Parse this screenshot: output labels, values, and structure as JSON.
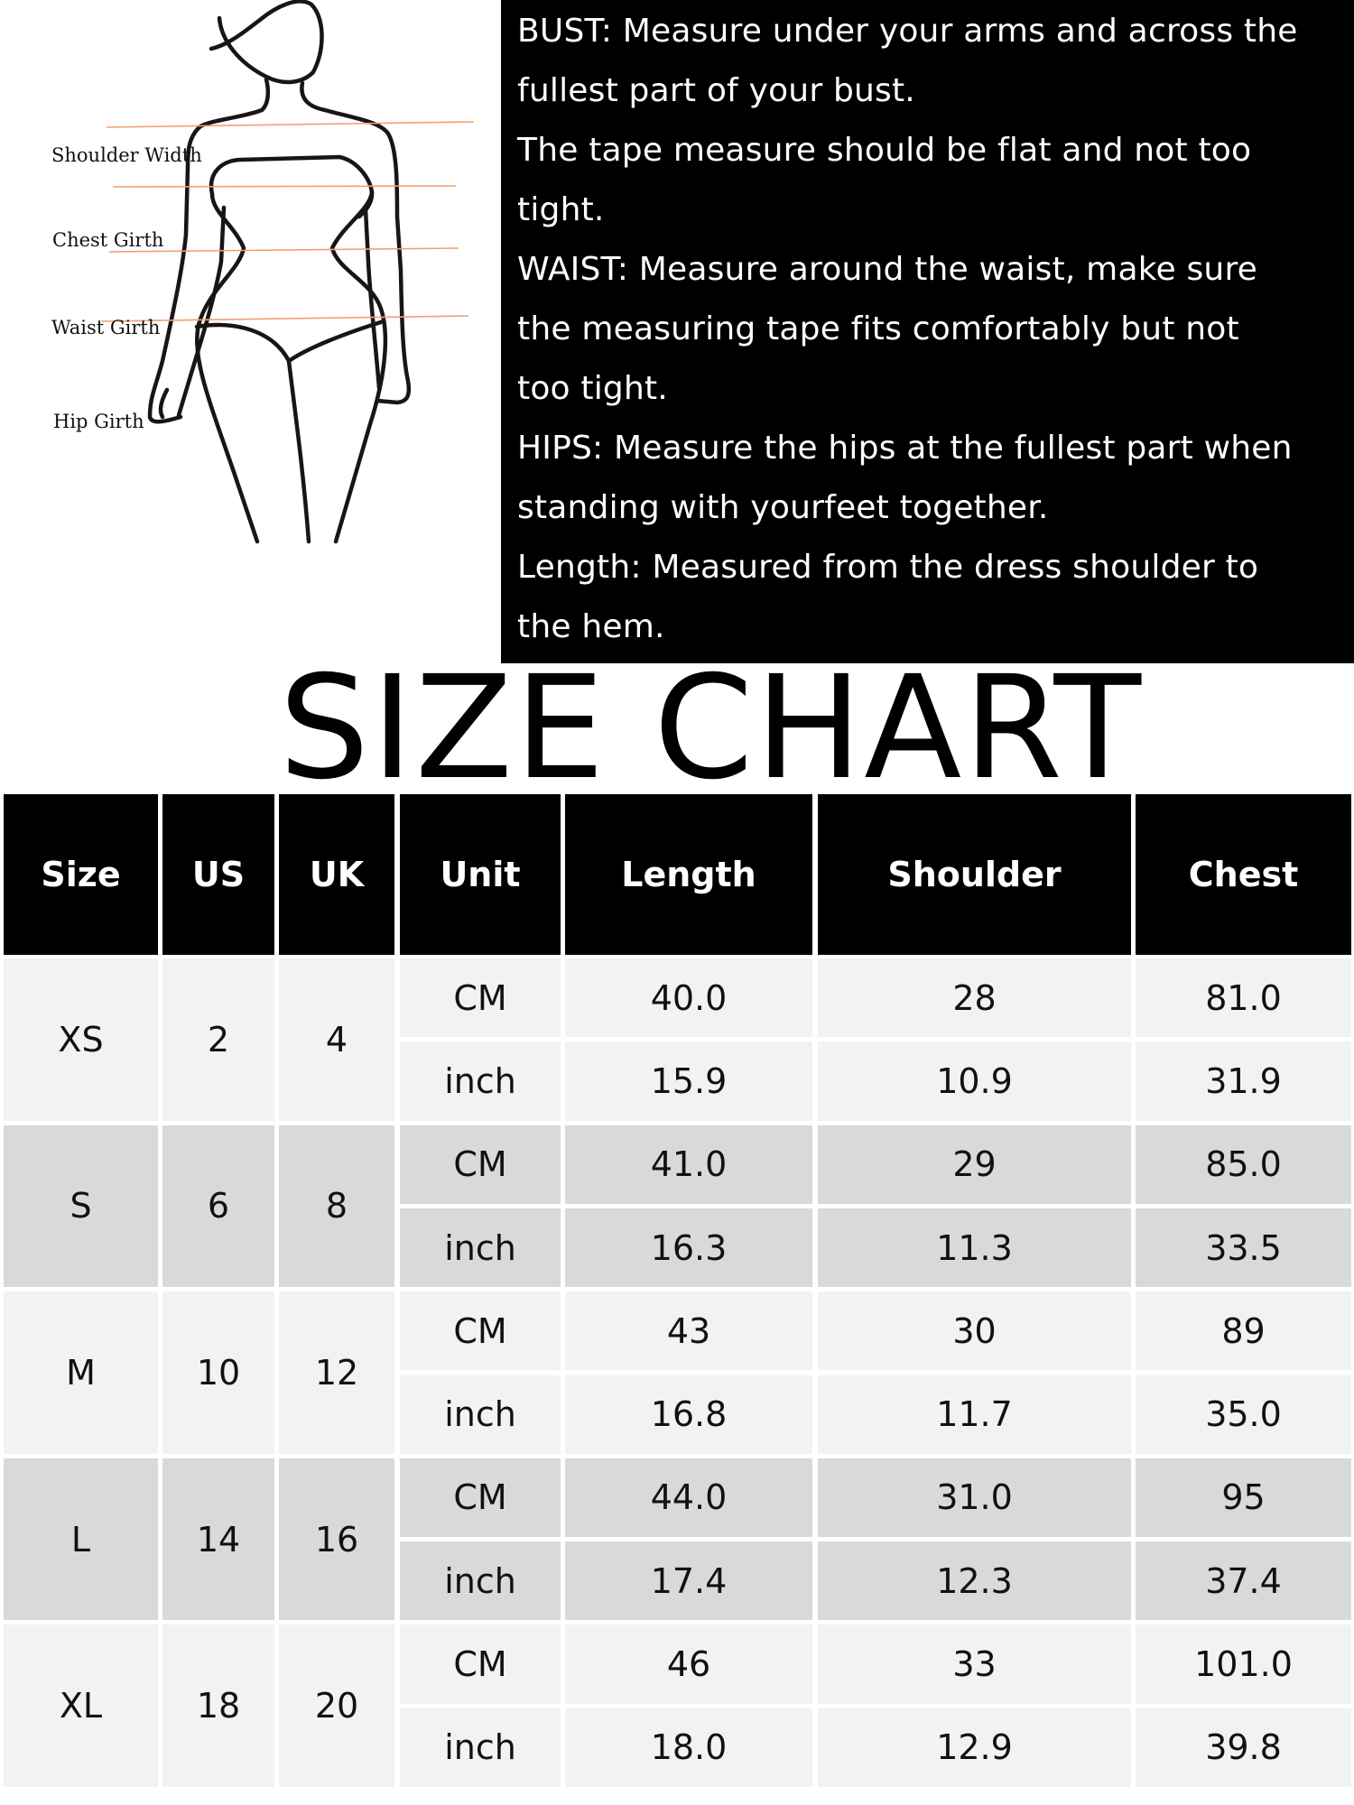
{
  "figure": {
    "labels": [
      "Shoulder Width",
      "Chest Girth",
      "Waist Girth",
      "Hip Girth"
    ],
    "line_color": "#f0a070"
  },
  "guide": {
    "lines": [
      "BUST: Measure under your arms and across the",
      "fullest part of your bust.",
      "The tape measure should be flat and not too",
      "tight.",
      "WAIST: Measure around the waist, make sure",
      "the measuring tape fits comfortably but not",
      "too tight.",
      "HIPS: Measure the hips at the fullest part when",
      "standing with yourfeet together.",
      "Length: Measured from the dress shoulder to",
      "the hem."
    ]
  },
  "title": "SIZE CHART",
  "table": {
    "headers": [
      "Size",
      "US",
      "UK",
      "Unit",
      "Length",
      "Shoulder",
      "Chest"
    ],
    "rows": [
      {
        "size": "XS",
        "us": "2",
        "uk": "4",
        "cm": [
          "CM",
          "40.0",
          "28",
          "81.0"
        ],
        "inch": [
          "inch",
          "15.9",
          "10.9",
          "31.9"
        ]
      },
      {
        "size": "S",
        "us": "6",
        "uk": "8",
        "cm": [
          "CM",
          "41.0",
          "29",
          "85.0"
        ],
        "inch": [
          "inch",
          "16.3",
          "11.3",
          "33.5"
        ]
      },
      {
        "size": "M",
        "us": "10",
        "uk": "12",
        "cm": [
          "CM",
          "43",
          "30",
          "89"
        ],
        "inch": [
          "inch",
          "16.8",
          "11.7",
          "35.0"
        ]
      },
      {
        "size": "L",
        "us": "14",
        "uk": "16",
        "cm": [
          "CM",
          "44.0",
          "31.0",
          "95"
        ],
        "inch": [
          "inch",
          "17.4",
          "12.3",
          "37.4"
        ]
      },
      {
        "size": "XL",
        "us": "18",
        "uk": "20",
        "cm": [
          "CM",
          "46",
          "33",
          "101.0"
        ],
        "inch": [
          "inch",
          "18.0",
          "12.9",
          "39.8"
        ]
      }
    ],
    "colors": {
      "header": "#000000",
      "light": "#f2f2f2",
      "dark": "#d9d9d9"
    }
  }
}
